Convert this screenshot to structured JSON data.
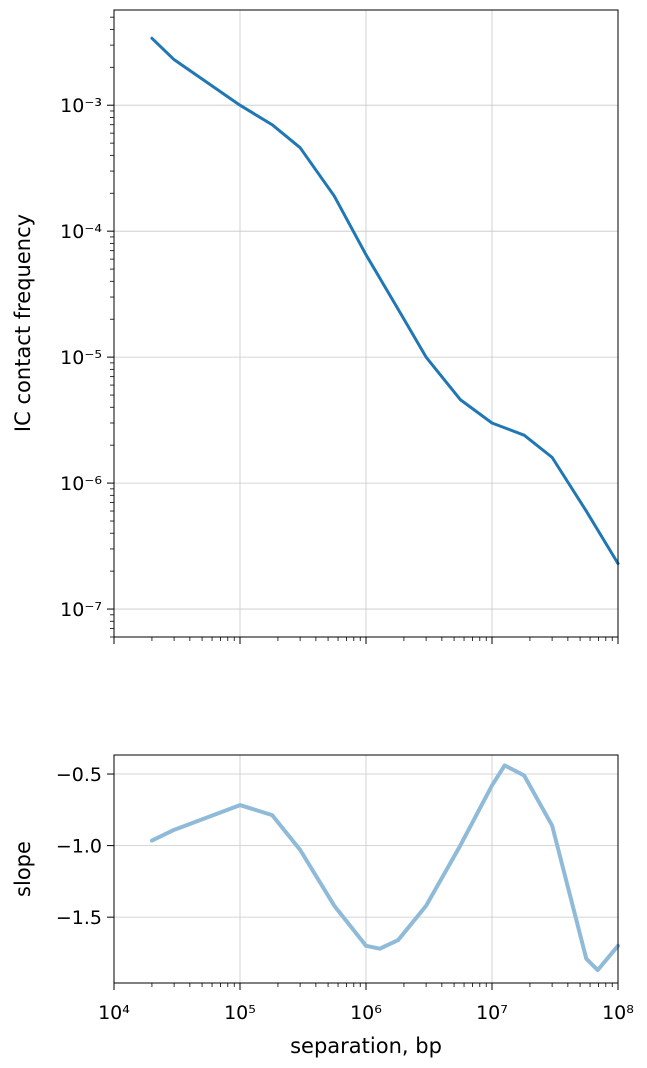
{
  "chart_data": [
    {
      "type": "line",
      "ylabel": "IC contact frequency",
      "xlog": true,
      "ylog": true,
      "grid": true,
      "color": "#1f77b4",
      "xlim": [
        10000,
        100000000
      ],
      "xticks": [
        10000,
        100000,
        1000000,
        10000000,
        100000000
      ],
      "ylim": [
        6e-08,
        0.0057
      ],
      "yticks": [
        {
          "value": 1e-07,
          "label": "10⁻⁷"
        },
        {
          "value": 1e-06,
          "label": "10⁻⁶"
        },
        {
          "value": 1e-05,
          "label": "10⁻⁵"
        },
        {
          "value": 0.0001,
          "label": "10⁻⁴"
        },
        {
          "value": 0.001,
          "label": "10⁻³"
        }
      ],
      "x": [
        20000,
        30000,
        100000,
        180000,
        300000,
        560000,
        1000000,
        1800000,
        3000000,
        5600000,
        10000000,
        18000000,
        30000000,
        56000000,
        100000000
      ],
      "values": [
        0.0034,
        0.0023,
        0.001,
        0.0007,
        0.00046,
        0.00019,
        6.5e-05,
        2.4e-05,
        1e-05,
        4.6e-06,
        3e-06,
        2.4e-06,
        1.6e-06,
        6e-07,
        2.3e-07
      ]
    },
    {
      "type": "line",
      "ylabel": "slope",
      "xlabel": "separation, bp",
      "xlog": true,
      "ylog": false,
      "grid": true,
      "color": "#8fbbd9",
      "xlim": [
        10000,
        100000000
      ],
      "xticks": [
        {
          "value": 10000,
          "label": "10⁴"
        },
        {
          "value": 100000,
          "label": "10⁵"
        },
        {
          "value": 1000000,
          "label": "10⁶"
        },
        {
          "value": 10000000,
          "label": "10⁷"
        },
        {
          "value": 100000000,
          "label": "10⁸"
        }
      ],
      "ylim": [
        -1.96,
        -0.367
      ],
      "yticks": [
        {
          "value": -1.5,
          "label": "−1.5"
        },
        {
          "value": -1.0,
          "label": "−1.0"
        },
        {
          "value": -0.5,
          "label": "−0.5"
        }
      ],
      "x": [
        20000,
        30000,
        100000,
        180000,
        300000,
        560000,
        1000000,
        1290000,
        1800000,
        3000000,
        5600000,
        10000000,
        12600000,
        18000000,
        30000000,
        56000000,
        69000000,
        100000000
      ],
      "values": [
        -0.965,
        -0.89,
        -0.717,
        -0.787,
        -1.03,
        -1.42,
        -1.7,
        -1.72,
        -1.66,
        -1.42,
        -1.0,
        -0.58,
        -0.44,
        -0.51,
        -0.86,
        -1.79,
        -1.87,
        -1.7
      ]
    }
  ]
}
